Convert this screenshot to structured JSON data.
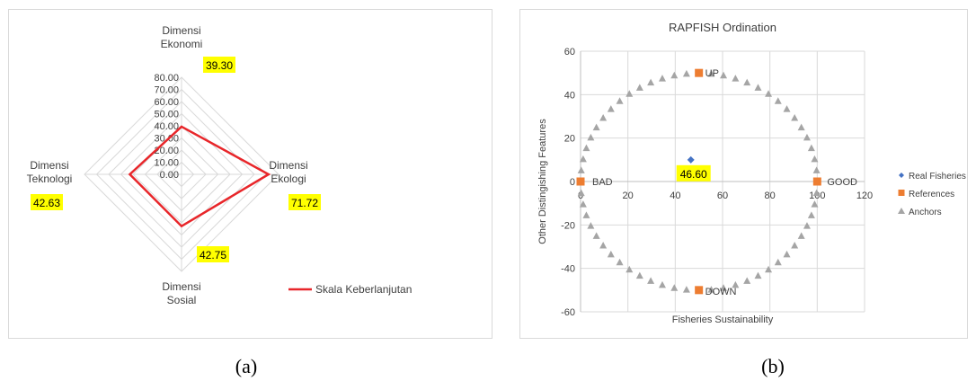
{
  "captions": {
    "a": "(a)",
    "b": "(b)"
  },
  "colors": {
    "radar_line": "#e8262a",
    "highlight": "#ffff00",
    "real": "#4472c4",
    "references": "#ed7d31",
    "anchors": "#a5a5a5",
    "grid": "#d9d9d9"
  },
  "chart_data": [
    {
      "type": "radar",
      "axes": [
        "Dimensi Ekonomi",
        "Dimensi Ekologi",
        "Dimensi Sosial",
        "Dimensi Teknologi"
      ],
      "axis_label_lines": [
        [
          "Dimensi",
          "Ekonomi"
        ],
        [
          "Dimensi",
          "Ekologi"
        ],
        [
          "Dimensi",
          "Sosial"
        ],
        [
          "Dimensi",
          "Teknologi"
        ]
      ],
      "ticks": [
        "0.00",
        "10.00",
        "20.00",
        "30.00",
        "40.00",
        "50.00",
        "60.00",
        "70.00",
        "80.00"
      ],
      "rmax": 80,
      "series": [
        {
          "name": "Skala Keberlanjutan",
          "values": [
            39.3,
            71.72,
            42.75,
            42.63
          ]
        }
      ],
      "value_labels": [
        "39.30",
        "71.72",
        "42.75",
        "42.63"
      ],
      "legend_position": "right"
    },
    {
      "type": "scatter",
      "title": "RAPFISH Ordination",
      "xlabel": "Fisheries Sustainability",
      "ylabel": "Other Distingishing Features",
      "xlim": [
        0,
        120
      ],
      "ylim": [
        -60,
        60
      ],
      "xticks": [
        "0",
        "20",
        "40",
        "60",
        "80",
        "100",
        "120"
      ],
      "yticks": [
        "60",
        "40",
        "20",
        "0",
        "-20",
        "-40",
        "-60"
      ],
      "series": [
        {
          "name": "Real Fisheries",
          "marker": "diamond",
          "points": [
            [
              46.6,
              10
            ]
          ]
        },
        {
          "name": "References",
          "marker": "square",
          "points": [
            [
              50,
              50
            ],
            [
              100,
              0
            ],
            [
              0,
              0
            ],
            [
              50,
              -50
            ]
          ]
        },
        {
          "name": "Anchors",
          "marker": "triangle",
          "circle": {
            "cx": 50,
            "cy": 0,
            "r": 50,
            "count": 60
          }
        }
      ],
      "point_labels": [
        {
          "text": "UP",
          "x": 50,
          "y": 50
        },
        {
          "text": "GOOD",
          "x": 100,
          "y": 0
        },
        {
          "text": "BAD",
          "x": 0,
          "y": 0
        },
        {
          "text": "DOWN",
          "x": 50,
          "y": -50
        }
      ],
      "highlight_label": {
        "text": "46.60",
        "x": 46.6,
        "y": 10
      },
      "legend_position": "right"
    }
  ]
}
